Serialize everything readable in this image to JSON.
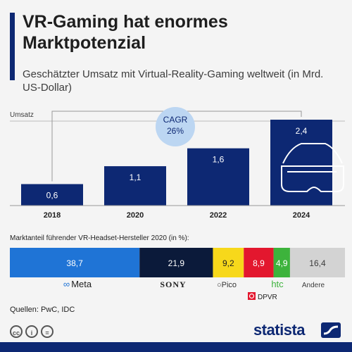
{
  "header": {
    "title": "VR-Gaming hat enormes Marktpotenzial",
    "subtitle": "Geschätzter Umsatz mit Virtual-Reality-Gaming weltweit (in Mrd. US-Dollar)"
  },
  "revenue_axis_label": "Umsatz",
  "cagr": {
    "line1": "CAGR",
    "line2": "26%"
  },
  "share_label": "Marktanteil führender VR-Headset-Hersteller 2020 (in %):",
  "brands": {
    "meta": "Meta",
    "sony": "SONY",
    "pico": "Pico",
    "dpvr": "DPVR",
    "htc": "htc",
    "andere": "Andere"
  },
  "source": "Quellen: PwC, IDC",
  "footer": {
    "brand": "statista"
  },
  "colors": {
    "navy": "#0d2873",
    "meta": "#1f74d6",
    "sony": "#0b1a3a",
    "pico": "#f7d81b",
    "dpvr": "#e3172e",
    "htc": "#3db33c",
    "andere": "#d3d3d3",
    "cagr_bubble": "#bcd6f2"
  },
  "chart_data": [
    {
      "type": "bar",
      "categories": [
        "2018",
        "2020",
        "2022",
        "2024"
      ],
      "values": [
        0.6,
        1.1,
        1.6,
        2.4
      ],
      "value_labels": [
        "0,6",
        "1,1",
        "1,6",
        "2,4"
      ],
      "ylabel": "Umsatz",
      "ylim": [
        0,
        2.4
      ]
    },
    {
      "type": "bar",
      "orientation": "stacked-horizontal",
      "categories": [
        "Meta",
        "Sony",
        "Pico",
        "DPVR",
        "HTC",
        "Andere"
      ],
      "values": [
        38.7,
        21.9,
        9.2,
        8.9,
        4.9,
        16.4
      ],
      "value_labels": [
        "38,7",
        "21,9",
        "9,2",
        "8,9",
        "4,9",
        "16,4"
      ]
    }
  ]
}
